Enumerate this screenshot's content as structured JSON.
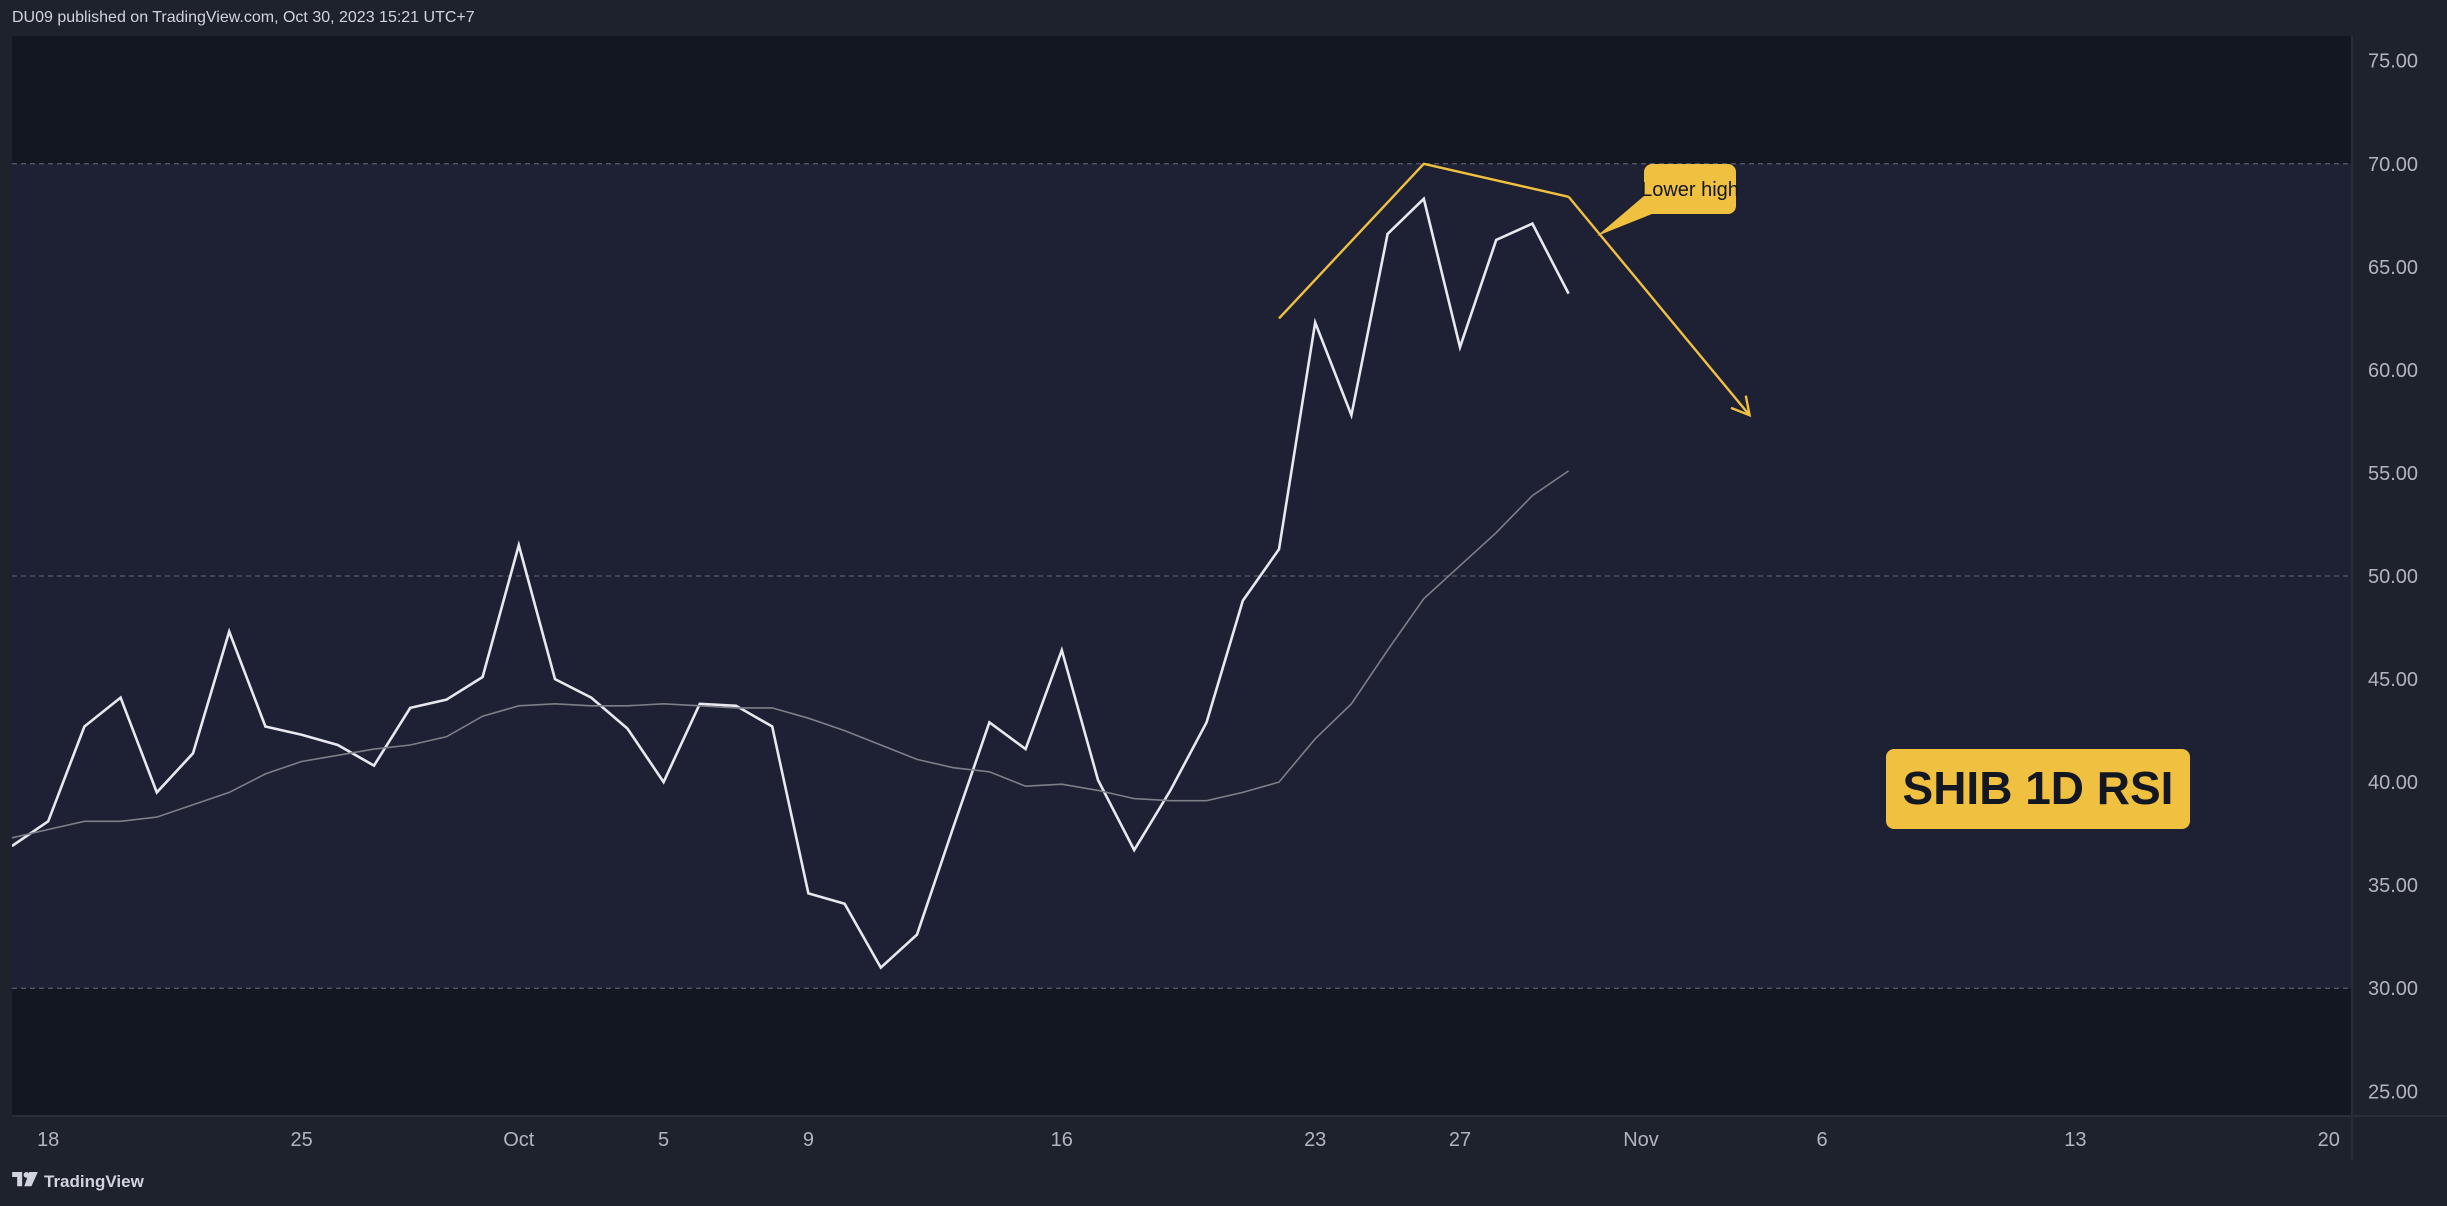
{
  "header": {
    "publisher_line": "DU09 published on TradingView.com, Oct 30, 2023 15:21 UTC+7"
  },
  "footer": {
    "brand_label": "TradingView",
    "logo_icon": "tradingview-logo-icon"
  },
  "colors": {
    "background_outer": "#131722",
    "background_band": "#1e2033",
    "panel": "#1e222d",
    "rsi_line": "#e8e8ef",
    "rsi_ma_line": "#7e7f88",
    "annotation": "#f0c040",
    "axis_text": "#b2b5be",
    "guide_line": "#5a5d6a"
  },
  "annotations": {
    "callout_text": "Lower high",
    "badge_text": "SHIB 1D RSI"
  },
  "chart_data": {
    "type": "line",
    "title": "",
    "xlabel": "",
    "ylabel": "",
    "ylim": [
      23.8,
      76.2
    ],
    "yticks": [
      25,
      30,
      35,
      40,
      45,
      50,
      55,
      60,
      65,
      70,
      75
    ],
    "ytick_labels": [
      "25.00",
      "30.00",
      "35.00",
      "40.00",
      "45.00",
      "50.00",
      "55.00",
      "60.00",
      "65.00",
      "70.00",
      "75.00"
    ],
    "x_dates": [
      "Sep 17",
      "Sep 18",
      "Sep 19",
      "Sep 20",
      "Sep 21",
      "Sep 22",
      "Sep 23",
      "Sep 24",
      "Sep 25",
      "Sep 26",
      "Sep 27",
      "Sep 28",
      "Sep 29",
      "Sep 30",
      "Oct 1",
      "Oct 2",
      "Oct 3",
      "Oct 4",
      "Oct 5",
      "Oct 6",
      "Oct 7",
      "Oct 8",
      "Oct 9",
      "Oct 10",
      "Oct 11",
      "Oct 12",
      "Oct 13",
      "Oct 14",
      "Oct 15",
      "Oct 16",
      "Oct 17",
      "Oct 18",
      "Oct 19",
      "Oct 20",
      "Oct 21",
      "Oct 22",
      "Oct 23",
      "Oct 24",
      "Oct 25",
      "Oct 26",
      "Oct 27",
      "Oct 28",
      "Oct 29",
      "Oct 30"
    ],
    "x_ticks": [
      "18",
      "25",
      "Oct",
      "5",
      "9",
      "16",
      "23",
      "27",
      "Nov",
      "6",
      "13",
      "20"
    ],
    "x_tick_dates": [
      "Sep 18",
      "Sep 25",
      "Oct 1",
      "Oct 5",
      "Oct 9",
      "Oct 16",
      "Oct 23",
      "Oct 27",
      "Nov 1",
      "Nov 6",
      "Nov 13",
      "Nov 20"
    ],
    "reference_levels": [
      70,
      50,
      30
    ],
    "band": [
      30,
      70
    ],
    "series": [
      {
        "role": "rsi",
        "values": [
          36.9,
          38.1,
          42.7,
          44.1,
          39.5,
          41.4,
          47.3,
          42.7,
          42.3,
          41.8,
          40.8,
          43.6,
          44.0,
          45.1,
          51.5,
          45.0,
          44.1,
          42.6,
          40.0,
          43.8,
          43.7,
          42.7,
          34.6,
          34.1,
          31.0,
          32.6,
          37.8,
          42.9,
          41.6,
          46.4,
          40.1,
          36.7,
          39.6,
          42.9,
          48.8,
          51.3,
          62.3,
          57.8,
          66.6,
          68.3,
          61.1,
          66.3,
          67.1,
          63.7
        ]
      },
      {
        "role": "rsi-ma",
        "values": [
          37.3,
          37.7,
          38.1,
          38.1,
          38.3,
          38.9,
          39.5,
          40.4,
          41.0,
          41.3,
          41.6,
          41.8,
          42.2,
          43.2,
          43.7,
          43.8,
          43.7,
          43.7,
          43.8,
          43.7,
          43.6,
          43.6,
          43.1,
          42.5,
          41.8,
          41.1,
          40.7,
          40.5,
          39.8,
          39.9,
          39.6,
          39.2,
          39.1,
          39.1,
          39.5,
          40.0,
          42.1,
          43.8,
          46.4,
          48.9,
          50.5,
          52.1,
          53.9,
          55.1
        ]
      }
    ],
    "lower_high_trendline": [
      {
        "date": "Oct 22",
        "value": 62.5
      },
      {
        "date": "Oct 26",
        "value": 70.0
      },
      {
        "date": "Oct 30",
        "value": 68.4
      }
    ],
    "projection_arrow": [
      {
        "date": "Oct 30",
        "value": 68.4
      },
      {
        "date": "Nov 4",
        "value": 57.8
      }
    ]
  }
}
